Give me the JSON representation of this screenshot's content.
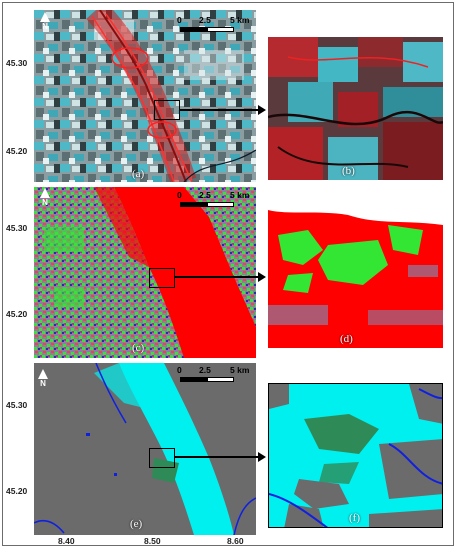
{
  "lat_labels": [
    "45.30",
    "45.20"
  ],
  "lon_labels": [
    "8.40",
    "8.50",
    "8.60"
  ],
  "scale_bar": {
    "ticks": [
      "0",
      "2.5",
      "5 km"
    ]
  },
  "north_label": "N",
  "panels": [
    {
      "id": "a",
      "label": "(a)"
    },
    {
      "id": "b",
      "label": "(b)"
    },
    {
      "id": "c",
      "label": "(c)"
    },
    {
      "id": "d",
      "label": "(d)"
    },
    {
      "id": "e",
      "label": "(e)"
    },
    {
      "id": "f",
      "label": "(f)"
    }
  ],
  "colors": {
    "sar_cyan": "#4fb8c6",
    "flood_red": "#d11a1a",
    "class_green": "#33e633",
    "class_red": "#ff0000",
    "water_cyan": "#00f0f0",
    "background_gray": "#6b6b6b",
    "river_blue": "#1020e0",
    "forest_green": "#2e8b57"
  }
}
